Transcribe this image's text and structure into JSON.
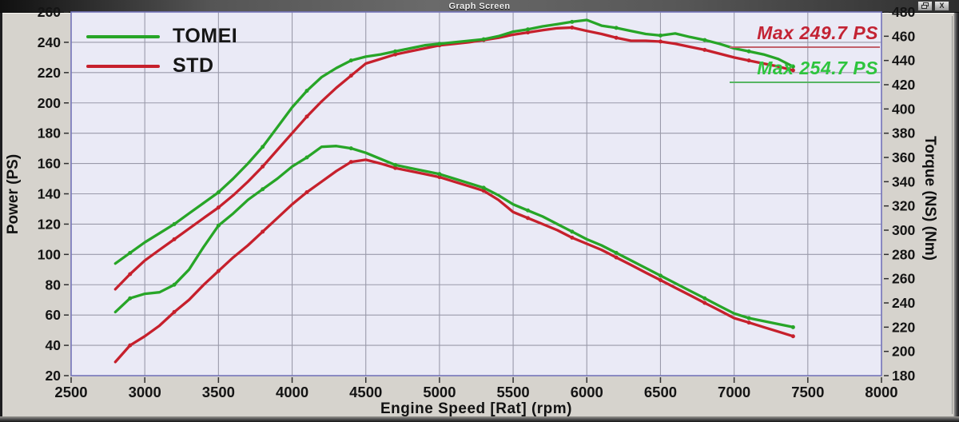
{
  "window": {
    "title": "Graph Screen",
    "close_button": "X"
  },
  "chart_data": {
    "type": "line",
    "title": "",
    "xlabel": "Engine Speed [Rat] (rpm)",
    "ylabel_left": "Power (PS)",
    "ylabel_right": "Torque (NS) (Nm)",
    "x_range": [
      2500,
      8000
    ],
    "y_left_range": [
      20,
      260
    ],
    "y_right_range": [
      180,
      480
    ],
    "x_ticks": [
      2500,
      3000,
      3500,
      4000,
      4500,
      5000,
      5500,
      6000,
      6500,
      7000,
      7500,
      8000
    ],
    "y_left_ticks": [
      260,
      240,
      220,
      200,
      180,
      160,
      140,
      120,
      100,
      80,
      60,
      40,
      20
    ],
    "y_right_ticks": [
      480,
      460,
      440,
      420,
      400,
      380,
      360,
      340,
      320,
      300,
      280,
      260,
      240,
      220,
      200,
      180
    ],
    "grid": true,
    "legend_position": "top-left-inside",
    "colors": {
      "tomei": "#27a527",
      "std": "#c6202c",
      "plot_background": "#eaeaf6",
      "gridline": "#9a9aaa",
      "plot_border": "#7575bb",
      "annotation_std": "#c32334",
      "annotation_tomei": "#2ec43e"
    },
    "legend": [
      {
        "label": "TOMEI",
        "color": "#27a527"
      },
      {
        "label": "STD",
        "color": "#c6202c"
      }
    ],
    "annotations": [
      {
        "text": "Max 249.7 PS",
        "series": "STD",
        "color": "#c32334"
      },
      {
        "text": "Max 254.7 PS",
        "series": "TOMEI",
        "color": "#2ec43e"
      }
    ],
    "x": [
      2800,
      2900,
      3000,
      3100,
      3200,
      3300,
      3400,
      3500,
      3600,
      3700,
      3800,
      3900,
      4000,
      4100,
      4200,
      4300,
      4400,
      4500,
      4600,
      4700,
      4800,
      4900,
      5000,
      5100,
      5200,
      5300,
      5400,
      5500,
      5600,
      5700,
      5800,
      5900,
      6000,
      6100,
      6200,
      6300,
      6400,
      6500,
      6600,
      6700,
      6800,
      6900,
      7000,
      7100,
      7200,
      7300,
      7400
    ],
    "series": [
      {
        "name": "TOMEI",
        "quantity": "power",
        "unit": "PS",
        "axis": "left",
        "color": "#27a527",
        "max_label": "Max 254.7 PS",
        "values": [
          94,
          101,
          108,
          114,
          120,
          127,
          134,
          141,
          150,
          160,
          171,
          184,
          197,
          208,
          217,
          223,
          228,
          230.5,
          232,
          234,
          236,
          238,
          239,
          240,
          241,
          242,
          244,
          247,
          248.5,
          250.5,
          252,
          253.5,
          254.7,
          251,
          249.5,
          247.5,
          245.5,
          244.5,
          245.8,
          243.5,
          241.5,
          239,
          236,
          234,
          232,
          229,
          224
        ]
      },
      {
        "name": "STD",
        "quantity": "power",
        "unit": "PS",
        "axis": "left",
        "color": "#c6202c",
        "max_label": "Max 249.7 PS",
        "values": [
          77,
          87,
          96,
          103,
          110,
          117,
          124,
          131,
          139,
          148,
          158,
          169,
          180,
          191,
          201,
          210,
          218,
          226,
          229,
          232,
          234,
          236,
          238,
          239,
          240,
          241.5,
          243,
          245,
          246.5,
          248,
          249.3,
          249.7,
          247.5,
          245.5,
          243,
          241,
          241,
          240.5,
          239,
          237,
          235,
          232.5,
          230,
          228,
          226,
          224,
          221.5
        ]
      },
      {
        "name": "TOMEI",
        "quantity": "torque",
        "unit": "Nm",
        "axis": "right",
        "color": "#27a527",
        "values": [
          232.5,
          243.8,
          247.5,
          248.8,
          255,
          267.5,
          286.3,
          303.8,
          313.8,
          325,
          333.8,
          342.5,
          352.5,
          360,
          368.8,
          369.4,
          367.5,
          363.8,
          358.8,
          353.8,
          351.3,
          348.8,
          346.3,
          342.5,
          338.8,
          335,
          328.8,
          321.3,
          316.3,
          311.3,
          305,
          298.8,
          292.5,
          287.5,
          281.3,
          275,
          268.8,
          262.5,
          256.3,
          250,
          243.8,
          237.5,
          231.3,
          227.5,
          225,
          222.5,
          220
        ]
      },
      {
        "name": "STD",
        "quantity": "torque",
        "unit": "Nm",
        "axis": "right",
        "color": "#c6202c",
        "values": [
          191.3,
          205,
          212.5,
          221.3,
          232.5,
          242.5,
          255,
          266.3,
          277.5,
          287.5,
          298.8,
          310,
          321.3,
          331.3,
          340,
          348.8,
          356.3,
          358.1,
          355,
          351.3,
          348.8,
          346.3,
          343.8,
          340,
          336.3,
          332.5,
          325,
          315,
          310,
          305,
          300,
          293.8,
          288.8,
          283.8,
          277.5,
          271.3,
          265,
          258.8,
          252.5,
          246.3,
          240,
          233.8,
          227.5,
          223.8,
          220,
          216.3,
          212.5
        ]
      }
    ]
  }
}
